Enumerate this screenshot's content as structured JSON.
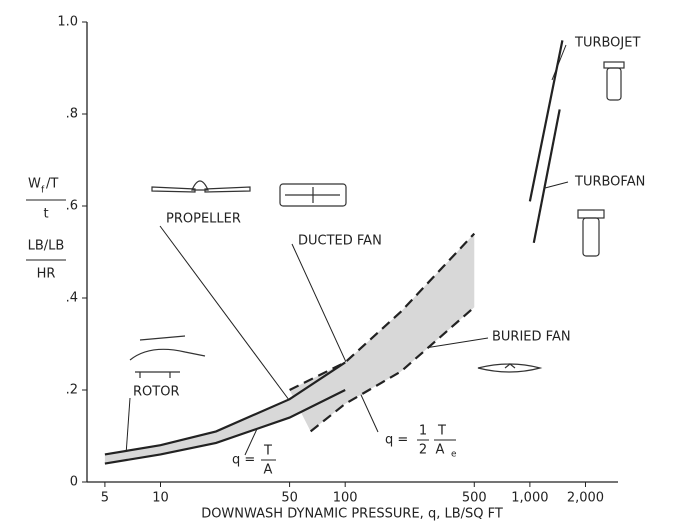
{
  "chart_data": {
    "type": "line",
    "x_log": true,
    "grid": false,
    "x_label": "DOWNWASH DYNAMIC PRESSURE, q, LB/SQ FT",
    "y_label": [
      "W",
      "f",
      "/T",
      "t",
      "LB/LB",
      "HR"
    ],
    "xlim": [
      4,
      3000
    ],
    "ylim": [
      0,
      1.0
    ],
    "xticks": [
      5,
      10,
      50,
      100,
      500,
      {
        "value": 1000,
        "label": "1,000"
      },
      {
        "value": 2000,
        "label": "2,000"
      }
    ],
    "yticks": [
      0,
      {
        "value": 0.2,
        "label": ".2"
      },
      {
        "value": 0.4,
        "label": ".4"
      },
      {
        "value": 0.6,
        "label": ".6"
      },
      {
        "value": 0.8,
        "label": ".8"
      },
      {
        "value": 1.0,
        "label": "1.0"
      }
    ],
    "series": [
      {
        "color": "#222222",
        "dash": false,
        "x": [
          5,
          10,
          20,
          50,
          100
        ],
        "values": [
          0.06,
          0.08,
          0.11,
          0.18,
          0.26
        ]
      },
      {
        "color": "#222222",
        "dash": false,
        "x": [
          5,
          10,
          20,
          50,
          100
        ],
        "values": [
          0.04,
          0.06,
          0.085,
          0.14,
          0.2
        ]
      },
      {
        "color": "#222222",
        "dash": true,
        "x": [
          50,
          100,
          200,
          500
        ],
        "values": [
          0.2,
          0.26,
          0.37,
          0.54
        ]
      },
      {
        "color": "#222222",
        "dash": true,
        "x": [
          65,
          100,
          200,
          500
        ],
        "values": [
          0.11,
          0.17,
          0.24,
          0.38
        ]
      },
      {
        "color": "#222222",
        "dash": false,
        "x": [
          1000,
          1500
        ],
        "values": [
          0.61,
          0.96
        ]
      },
      {
        "color": "#222222",
        "dash": false,
        "x": [
          1050,
          1450
        ],
        "values": [
          0.52,
          0.81
        ]
      }
    ],
    "annotations": [
      "TURBOJET",
      "TURBOFAN",
      "PROPELLER",
      "DUCTED FAN",
      "BURIED FAN",
      "ROTOR"
    ],
    "formula_1": {
      "lhs": "q =",
      "num": "T",
      "den": "A"
    },
    "formula_2": {
      "lhs": "q =",
      "num1": "1",
      "den1": "2",
      "num2": "T",
      "den2": "A",
      "sub": "e"
    }
  }
}
